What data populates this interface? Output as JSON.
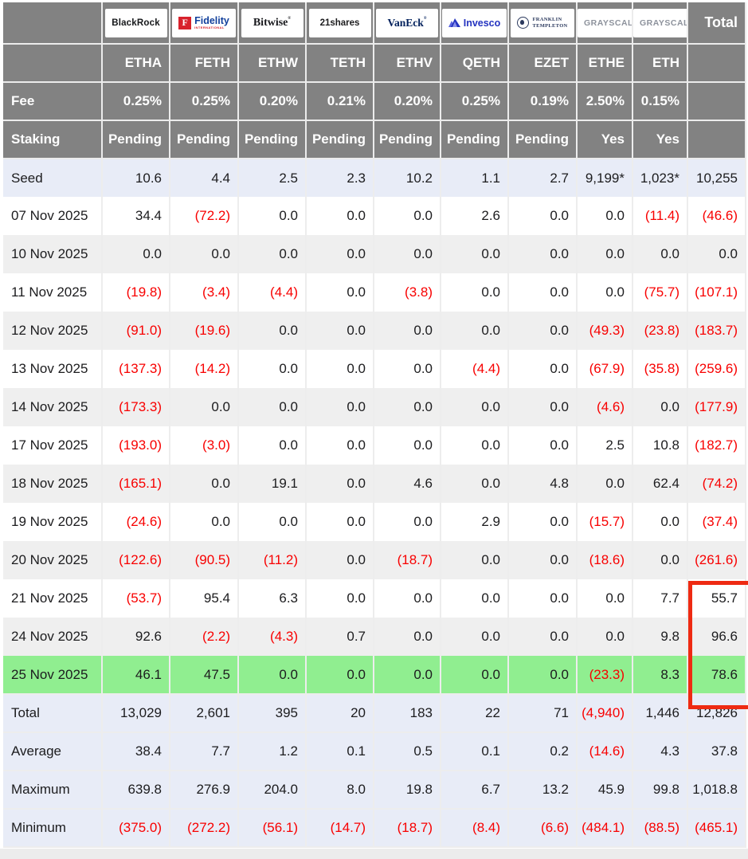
{
  "header": {
    "total_label": "Total",
    "fee_label": "Fee",
    "staking_label": "Staking"
  },
  "providers": [
    {
      "ticker": "ETHA",
      "fee": "0.25%",
      "staking": "Pending",
      "logo": "blackrock",
      "logo_parts": {
        "main": "BlackRock"
      }
    },
    {
      "ticker": "FETH",
      "fee": "0.25%",
      "staking": "Pending",
      "logo": "fidelity",
      "logo_parts": {
        "badge": "F",
        "main": "Fidelity",
        "sub": "INTERNATIONAL"
      }
    },
    {
      "ticker": "ETHW",
      "fee": "0.20%",
      "staking": "Pending",
      "logo": "bitwise",
      "logo_parts": {
        "main": "Bitwise",
        "mark": "®"
      }
    },
    {
      "ticker": "TETH",
      "fee": "0.21%",
      "staking": "Pending",
      "logo": "21shares",
      "logo_parts": {
        "main": "21shares"
      }
    },
    {
      "ticker": "ETHV",
      "fee": "0.20%",
      "staking": "Pending",
      "logo": "vaneck",
      "logo_parts": {
        "main": "VanEck",
        "mark": "®"
      }
    },
    {
      "ticker": "QETH",
      "fee": "0.25%",
      "staking": "Pending",
      "logo": "invesco",
      "logo_parts": {
        "main": "Invesco"
      }
    },
    {
      "ticker": "EZET",
      "fee": "0.19%",
      "staking": "Pending",
      "logo": "franklin",
      "logo_parts": {
        "line1": "FRANKLIN",
        "line2": "TEMPLETON"
      }
    },
    {
      "ticker": "ETHE",
      "fee": "2.50%",
      "staking": "Yes",
      "logo": "grayscale",
      "logo_parts": {
        "main": "GRAYSCALE",
        "mark": "®"
      }
    },
    {
      "ticker": "ETH",
      "fee": "0.15%",
      "staking": "Yes",
      "logo": "grayscale",
      "logo_parts": {
        "main": "GRAYSCALE",
        "mark": "®"
      }
    }
  ],
  "rows": [
    {
      "label": "Seed",
      "style": "seed",
      "values": [
        "10.6",
        "4.4",
        "2.5",
        "2.3",
        "10.2",
        "1.1",
        "2.7",
        "9,199*",
        "1,023*",
        "10,255"
      ]
    },
    {
      "label": "07 Nov 2025",
      "style": "plain",
      "values": [
        "34.4",
        "(72.2)",
        "0.0",
        "0.0",
        "0.0",
        "2.6",
        "0.0",
        "0.0",
        "(11.4)",
        "(46.6)"
      ]
    },
    {
      "label": "10 Nov 2025",
      "style": "alt",
      "values": [
        "0.0",
        "0.0",
        "0.0",
        "0.0",
        "0.0",
        "0.0",
        "0.0",
        "0.0",
        "0.0",
        "0.0"
      ]
    },
    {
      "label": "11 Nov 2025",
      "style": "plain",
      "values": [
        "(19.8)",
        "(3.4)",
        "(4.4)",
        "0.0",
        "(3.8)",
        "0.0",
        "0.0",
        "0.0",
        "(75.7)",
        "(107.1)"
      ]
    },
    {
      "label": "12 Nov 2025",
      "style": "alt",
      "values": [
        "(91.0)",
        "(19.6)",
        "0.0",
        "0.0",
        "0.0",
        "0.0",
        "0.0",
        "(49.3)",
        "(23.8)",
        "(183.7)"
      ]
    },
    {
      "label": "13 Nov 2025",
      "style": "plain",
      "values": [
        "(137.3)",
        "(14.2)",
        "0.0",
        "0.0",
        "0.0",
        "(4.4)",
        "0.0",
        "(67.9)",
        "(35.8)",
        "(259.6)"
      ]
    },
    {
      "label": "14 Nov 2025",
      "style": "alt",
      "values": [
        "(173.3)",
        "0.0",
        "0.0",
        "0.0",
        "0.0",
        "0.0",
        "0.0",
        "(4.6)",
        "0.0",
        "(177.9)"
      ]
    },
    {
      "label": "17 Nov 2025",
      "style": "plain",
      "values": [
        "(193.0)",
        "(3.0)",
        "0.0",
        "0.0",
        "0.0",
        "0.0",
        "0.0",
        "2.5",
        "10.8",
        "(182.7)"
      ]
    },
    {
      "label": "18 Nov 2025",
      "style": "alt",
      "values": [
        "(165.1)",
        "0.0",
        "19.1",
        "0.0",
        "4.6",
        "0.0",
        "4.8",
        "0.0",
        "62.4",
        "(74.2)"
      ]
    },
    {
      "label": "19 Nov 2025",
      "style": "plain",
      "values": [
        "(24.6)",
        "0.0",
        "0.0",
        "0.0",
        "0.0",
        "2.9",
        "0.0",
        "(15.7)",
        "0.0",
        "(37.4)"
      ]
    },
    {
      "label": "20 Nov 2025",
      "style": "alt",
      "values": [
        "(122.6)",
        "(90.5)",
        "(11.2)",
        "0.0",
        "(18.7)",
        "0.0",
        "0.0",
        "(18.6)",
        "0.0",
        "(261.6)"
      ]
    },
    {
      "label": "21 Nov 2025",
      "style": "plain",
      "values": [
        "(53.7)",
        "95.4",
        "6.3",
        "0.0",
        "0.0",
        "0.0",
        "0.0",
        "0.0",
        "7.7",
        "55.7"
      ]
    },
    {
      "label": "24 Nov 2025",
      "style": "alt",
      "values": [
        "92.6",
        "(2.2)",
        "(4.3)",
        "0.7",
        "0.0",
        "0.0",
        "0.0",
        "0.0",
        "9.8",
        "96.6"
      ]
    },
    {
      "label": "25 Nov 2025",
      "style": "green",
      "values": [
        "46.1",
        "47.5",
        "0.0",
        "0.0",
        "0.0",
        "0.0",
        "0.0",
        "(23.3)",
        "8.3",
        "78.6"
      ]
    },
    {
      "label": "Total",
      "style": "summary",
      "values": [
        "13,029",
        "2,601",
        "395",
        "20",
        "183",
        "22",
        "71",
        "(4,940)",
        "1,446",
        "12,826"
      ]
    },
    {
      "label": "Average",
      "style": "summary",
      "values": [
        "38.4",
        "7.7",
        "1.2",
        "0.1",
        "0.5",
        "0.1",
        "0.2",
        "(14.6)",
        "4.3",
        "37.8"
      ]
    },
    {
      "label": "Maximum",
      "style": "summary",
      "values": [
        "639.8",
        "276.9",
        "204.0",
        "8.0",
        "19.8",
        "6.7",
        "13.2",
        "45.9",
        "99.8",
        "1,018.8"
      ]
    },
    {
      "label": "Minimum",
      "style": "summary",
      "values": [
        "(375.0)",
        "(272.2)",
        "(56.1)",
        "(14.7)",
        "(18.7)",
        "(8.4)",
        "(6.6)",
        "(484.1)",
        "(88.5)",
        "(465.1)"
      ]
    }
  ],
  "highlight_box": {
    "column": "Total",
    "rows": [
      "21 Nov 2025",
      "24 Nov 2025",
      "25 Nov 2025"
    ],
    "border_color": "#ee2a12"
  },
  "colors": {
    "header_bg": "#828282",
    "negative_text": "#f80000",
    "green_row_bg": "#90ee90",
    "band_blue_bg": "#e8ecf7",
    "band_gray_bg": "#efefef"
  }
}
